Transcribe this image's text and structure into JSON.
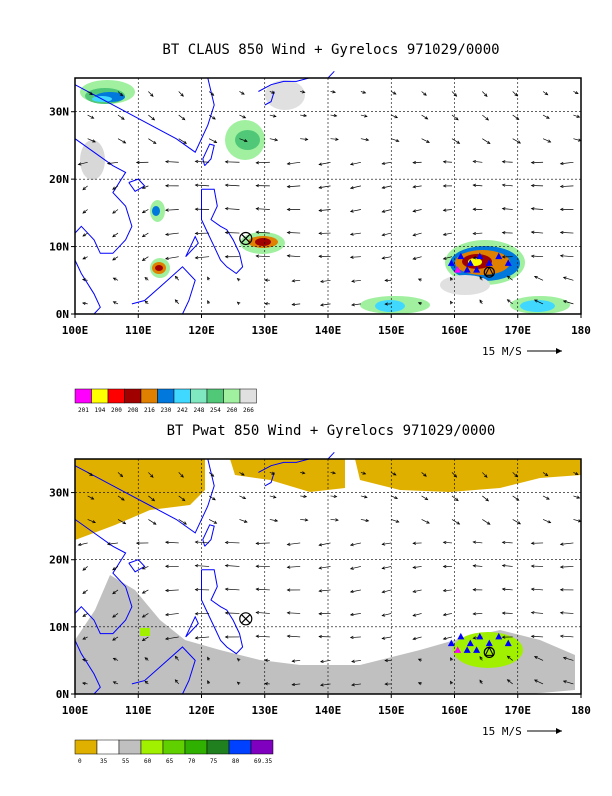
{
  "panels": [
    {
      "title": "BT CLAUS 850 Wind + Gyrelocs 971029/0000",
      "x_ticks": [
        "100E",
        "110E",
        "120E",
        "130E",
        "140E",
        "150E",
        "160E",
        "170E",
        "180"
      ],
      "y_ticks": [
        "0N",
        "10N",
        "20N",
        "30N"
      ],
      "scale_label": "15 M/S",
      "legend_colors": [
        "#ff00ff",
        "#ffff00",
        "#ff0000",
        "#a00000",
        "#e08000",
        "#0078dc",
        "#40d8ff",
        "#80e8c0",
        "#50c878",
        "#a0f0a0",
        "#e0e0e0"
      ],
      "legend_labels": [
        "201",
        "194",
        "200",
        "208",
        "216",
        "230",
        "242",
        "248",
        "254",
        "260",
        "266"
      ]
    },
    {
      "title": "BT Pwat 850 Wind + Gyrelocs 971029/0000",
      "x_ticks": [
        "100E",
        "110E",
        "120E",
        "130E",
        "140E",
        "150E",
        "160E",
        "170E",
        "180"
      ],
      "y_ticks": [
        "0N",
        "10N",
        "20N",
        "30N"
      ],
      "scale_label": "15 M/S",
      "legend_colors": [
        "#e0b000",
        "#ffffff",
        "#c0c0c0",
        "#a0f000",
        "#60d000",
        "#30b000",
        "#208020",
        "#0040ff",
        "#8000c0"
      ],
      "legend_labels": [
        "0",
        "35",
        "55",
        "60",
        "65",
        "70",
        "75",
        "80",
        "69.35"
      ]
    }
  ],
  "colors": {
    "coast": "#0000ff",
    "grid": "#000000",
    "arrow": "#000000",
    "triangle_blue": "#0000ff",
    "triangle_magenta": "#ff00ff"
  }
}
